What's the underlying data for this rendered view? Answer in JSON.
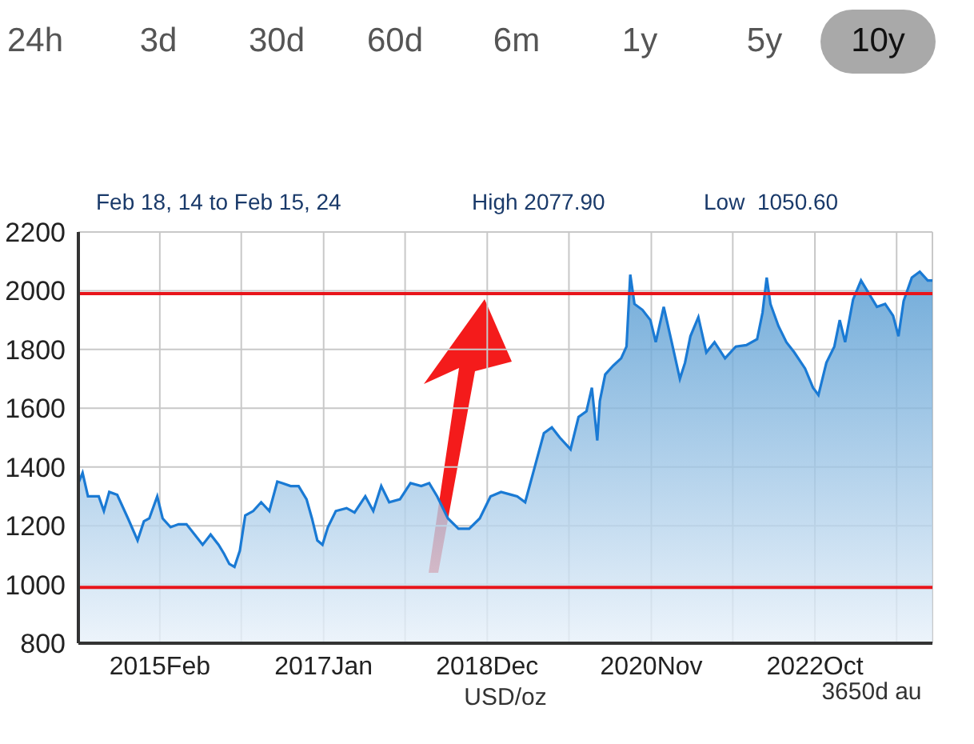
{
  "chart_data": {
    "type": "area",
    "title": "Feb 18, 14 to Feb 15, 24",
    "xlabel": "USD/oz",
    "annotations": [
      "24h",
      "3d",
      "30d",
      "60d",
      "6m",
      "1y",
      "5y",
      "10y",
      "High 2077.90",
      "Low  1050.60",
      "3650d au"
    ],
    "x": [
      "2014-02-18",
      "2014-03-08",
      "2014-03-31",
      "2014-05-16",
      "2014-06-07",
      "2014-06-30",
      "2014-08-03",
      "2014-09-18",
      "2014-10-29",
      "2014-11-25",
      "2014-12-18",
      "2015-01-21",
      "2015-02-13",
      "2015-03-19",
      "2015-04-22",
      "2015-05-26",
      "2015-06-30",
      "2015-08-03",
      "2015-09-06",
      "2015-10-10",
      "2015-11-02",
      "2015-11-25",
      "2015-12-17",
      "2016-01-09",
      "2016-02-01",
      "2016-03-06",
      "2016-04-09",
      "2016-05-14",
      "2016-06-17",
      "2016-07-09",
      "2016-08-13",
      "2016-09-16",
      "2016-10-20",
      "2016-11-12",
      "2016-12-05",
      "2016-12-27",
      "2017-01-19",
      "2017-02-22",
      "2017-04-09",
      "2017-05-13",
      "2017-06-28",
      "2017-08-01",
      "2017-09-04",
      "2017-10-08",
      "2017-11-23",
      "2018-01-07",
      "2018-02-22",
      "2018-03-28",
      "2018-05-01",
      "2018-06-16",
      "2018-07-31",
      "2018-09-15",
      "2018-10-30",
      "2018-12-15",
      "2019-01-29",
      "2019-03-16",
      "2019-04-08",
      "2019-05-12",
      "2019-06-15",
      "2019-07-31",
      "2019-09-03",
      "2019-10-07",
      "2019-11-22",
      "2019-12-26",
      "2020-01-29",
      "2020-02-21",
      "2020-03-15",
      "2020-03-26",
      "2020-04-18",
      "2020-05-22",
      "2020-06-25",
      "2020-07-18",
      "2020-08-03",
      "2020-08-21",
      "2020-09-24",
      "2020-10-28",
      "2020-11-20",
      "2020-12-24",
      "2021-01-27",
      "2021-03-03",
      "2021-03-25",
      "2021-04-17",
      "2021-05-21",
      "2021-06-24",
      "2021-07-29",
      "2021-09-12",
      "2021-10-28",
      "2021-12-12",
      "2022-01-27",
      "2022-02-19",
      "2022-03-09",
      "2022-03-25",
      "2022-04-28",
      "2022-06-01",
      "2022-07-05",
      "2022-08-20",
      "2022-09-23",
      "2022-10-16",
      "2022-11-19",
      "2022-12-23",
      "2023-01-15",
      "2023-02-07",
      "2023-03-13",
      "2023-04-16",
      "2023-05-20",
      "2023-06-23",
      "2023-07-28",
      "2023-08-31",
      "2023-09-23",
      "2023-10-15",
      "2023-11-19",
      "2023-12-23",
      "2024-01-26",
      "2024-02-15"
    ],
    "series": [
      {
        "color": "#1a7ad4",
        "values": [
          1345,
          1380,
          1300,
          1300,
          1250,
          1315,
          1305,
          1225,
          1150,
          1215,
          1225,
          1300,
          1225,
          1195,
          1205,
          1205,
          1170,
          1135,
          1170,
          1135,
          1105,
          1070,
          1060,
          1115,
          1235,
          1250,
          1280,
          1250,
          1350,
          1345,
          1335,
          1335,
          1290,
          1225,
          1150,
          1135,
          1195,
          1250,
          1260,
          1245,
          1300,
          1250,
          1335,
          1280,
          1290,
          1345,
          1335,
          1345,
          1300,
          1225,
          1190,
          1190,
          1225,
          1300,
          1315,
          1305,
          1300,
          1280,
          1380,
          1515,
          1535,
          1500,
          1460,
          1570,
          1590,
          1670,
          1490,
          1625,
          1715,
          1745,
          1770,
          1810,
          2055,
          1955,
          1935,
          1900,
          1825,
          1945,
          1825,
          1700,
          1755,
          1845,
          1910,
          1790,
          1825,
          1770,
          1810,
          1815,
          1835,
          1925,
          2045,
          1955,
          1880,
          1825,
          1790,
          1735,
          1670,
          1645,
          1755,
          1810,
          1900,
          1825,
          1970,
          2035,
          1990,
          1945,
          1955,
          1915,
          1845,
          1965,
          2045,
          2065,
          2035,
          2035
        ]
      }
    ],
    "xlim": [
      "2014-02-18",
      "2024-02-15"
    ],
    "xticks": [
      {
        "value": "2015-02-01",
        "label": "2015Feb"
      },
      {
        "value": "2016-01-15",
        "label": null
      },
      {
        "value": "2017-01-01",
        "label": "2017Jan"
      },
      {
        "value": "2017-12-15",
        "label": null
      },
      {
        "value": "2018-12-01",
        "label": "2018Dec"
      },
      {
        "value": "2019-11-15",
        "label": null
      },
      {
        "value": "2020-11-01",
        "label": "2020Nov"
      },
      {
        "value": "2021-10-15",
        "label": null
      },
      {
        "value": "2022-10-01",
        "label": "2022Oct"
      },
      {
        "value": "2023-09-15",
        "label": null
      }
    ],
    "ylim": [
      800,
      2200
    ],
    "yticks": [
      800,
      1000,
      1200,
      1400,
      1600,
      1800,
      2000,
      2200
    ],
    "ref_lines": [
      {
        "axis": "y",
        "value": 1990,
        "color": "#e8151b"
      },
      {
        "axis": "y",
        "value": 990,
        "color": "#e8151b"
      }
    ],
    "grid": true,
    "legend": false
  }
}
